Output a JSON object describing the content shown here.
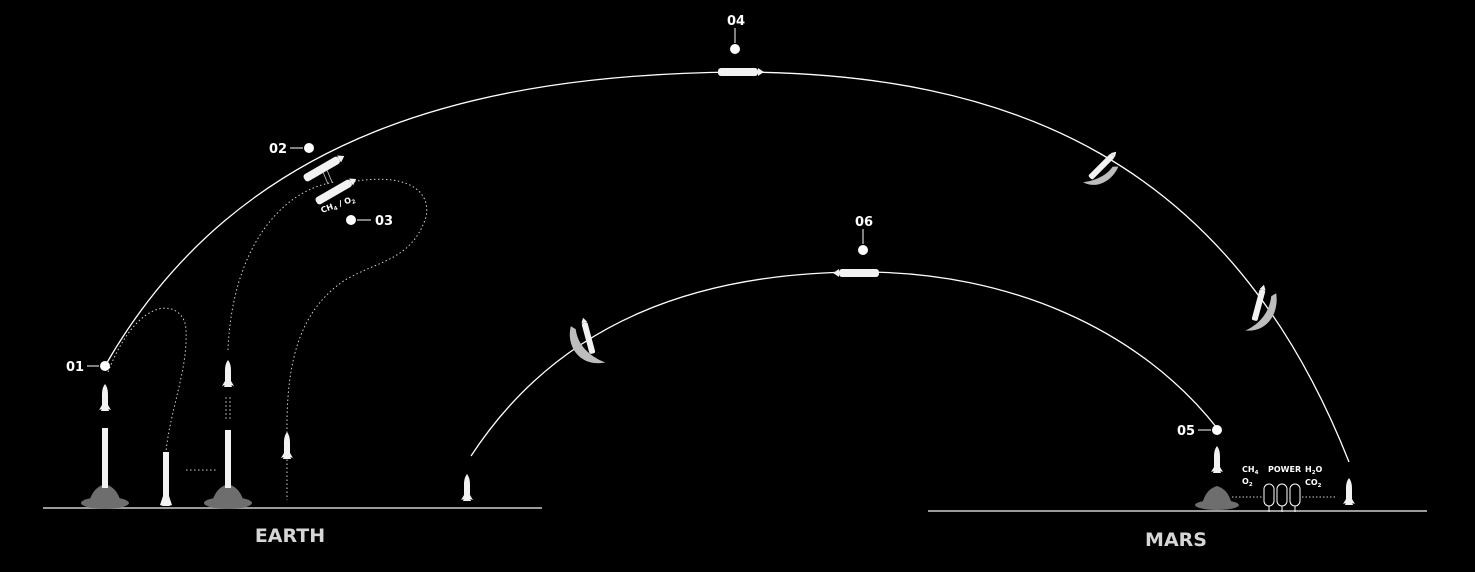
{
  "diagram": {
    "steps": [
      "01",
      "02",
      "03",
      "04",
      "05",
      "06"
    ],
    "ground_labels": {
      "earth": "EARTH",
      "mars": "MARS"
    },
    "refuel_label": {
      "a": "CH",
      "a_sub": "4",
      "sep": "/",
      "b": "O",
      "b_sub": "2"
    },
    "isru": {
      "ch4": {
        "text": "CH",
        "sub": "4"
      },
      "o2": {
        "text": "O",
        "sub": "2"
      },
      "power": "POWER",
      "h2o": {
        "text": "H",
        "sub": "2",
        "tail": "O"
      },
      "co2": {
        "text": "CO",
        "sub": "2"
      }
    },
    "colors": {
      "background": "#000000",
      "line": "#ffffff",
      "ground": "#9a9a9a",
      "plume": "#6e6e6e"
    },
    "icons": [
      "booster-ship-stack",
      "tanker",
      "spaceship",
      "heat-shield",
      "propellant-plant"
    ]
  }
}
